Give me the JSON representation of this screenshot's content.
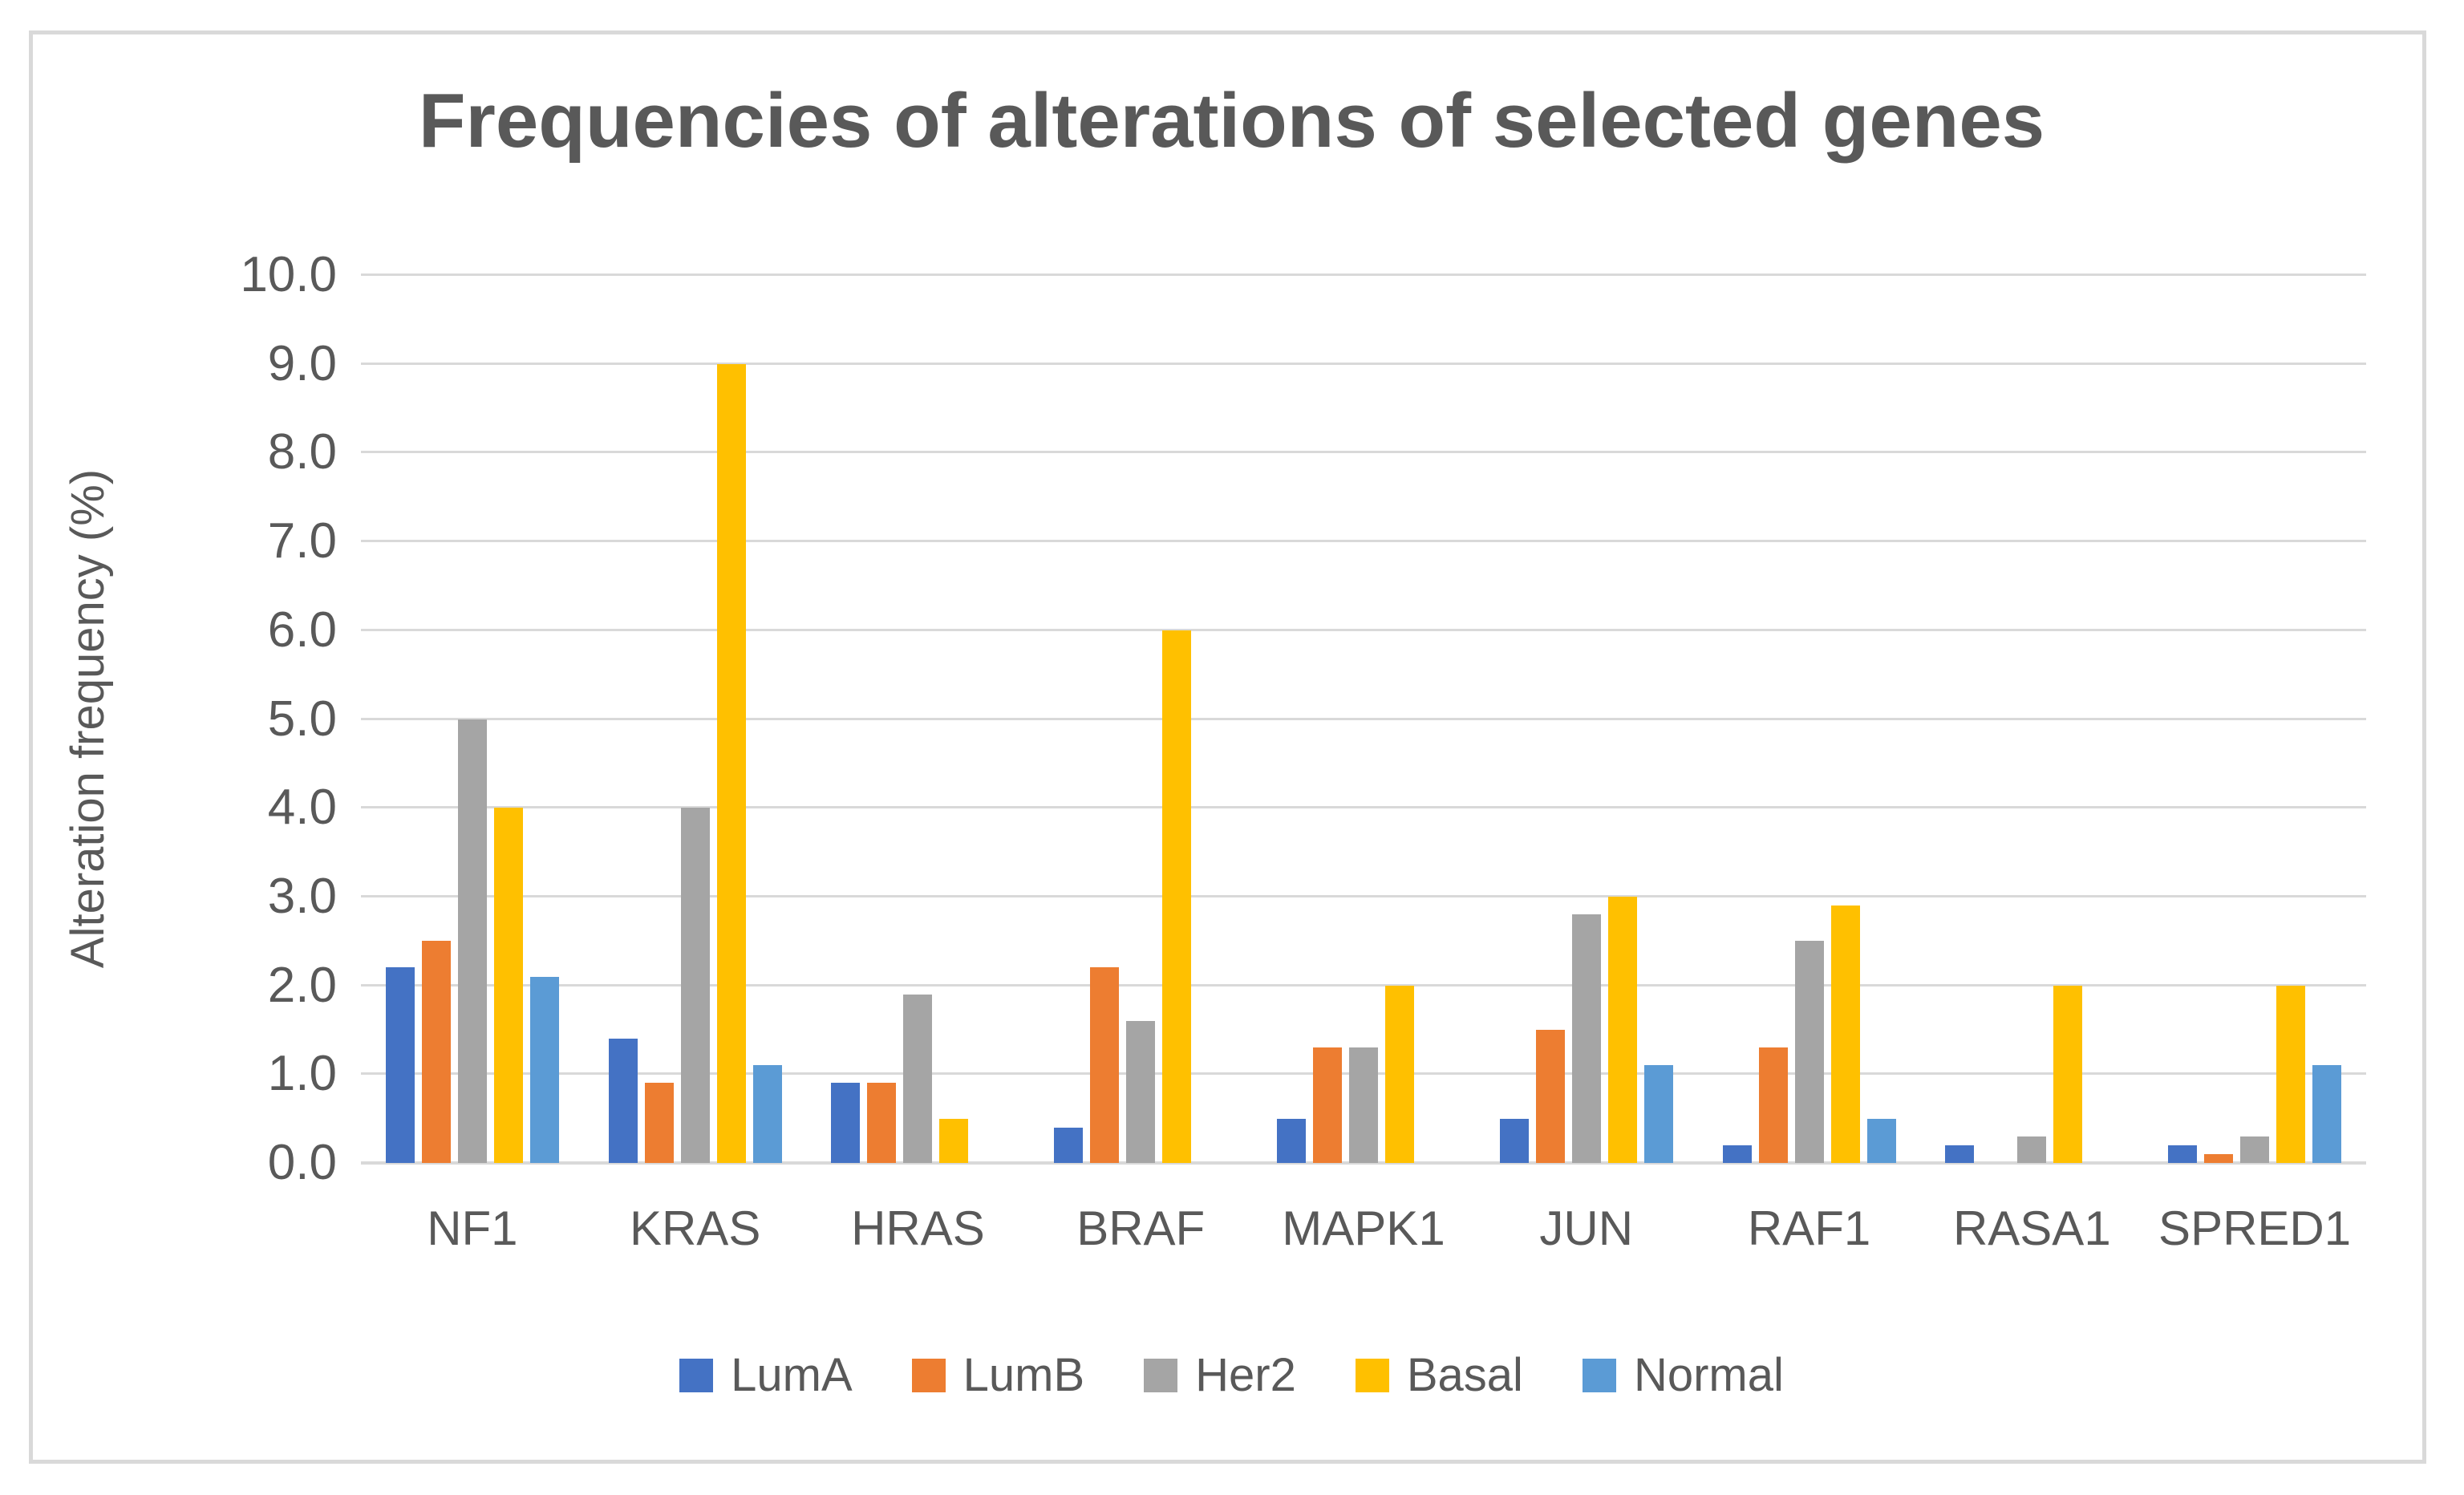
{
  "chart_data": {
    "type": "bar",
    "title": "Frequencies of alterations of selected genes",
    "xlabel": "",
    "ylabel": "Alteration frequency (%)",
    "categories": [
      "NF1",
      "KRAS",
      "HRAS",
      "BRAF",
      "MAPK1",
      "JUN",
      "RAF1",
      "RASA1",
      "SPRED1"
    ],
    "series": [
      {
        "name": "LumA",
        "color": "#4472C4",
        "values": [
          2.2,
          1.4,
          0.9,
          0.4,
          0.5,
          0.5,
          0.2,
          0.2,
          0.2
        ]
      },
      {
        "name": "LumB",
        "color": "#ED7D31",
        "values": [
          2.5,
          0.9,
          0.9,
          2.2,
          1.3,
          1.5,
          1.3,
          0.0,
          0.1
        ]
      },
      {
        "name": "Her2",
        "color": "#A5A5A5",
        "values": [
          5.0,
          4.0,
          1.9,
          1.6,
          1.3,
          2.8,
          2.5,
          0.3,
          0.3
        ]
      },
      {
        "name": "Basal",
        "color": "#FFC000",
        "values": [
          4.0,
          9.0,
          0.5,
          6.0,
          2.0,
          3.0,
          2.9,
          2.0,
          2.0
        ]
      },
      {
        "name": "Normal",
        "color": "#5B9BD5",
        "values": [
          2.1,
          1.1,
          0.0,
          0.0,
          0.0,
          1.1,
          0.5,
          0.0,
          1.1
        ]
      }
    ],
    "ylim": [
      0,
      10
    ],
    "ytick_step": 1.0,
    "ytick_labels": [
      "10.0",
      "9.0",
      "8.0",
      "7.0",
      "6.0",
      "5.0",
      "4.0",
      "3.0",
      "2.0",
      "1.0",
      "0.0"
    ],
    "grid": "horizontal",
    "legend_position": "bottom"
  },
  "colors": {
    "text": "#595959",
    "gridline": "#D9D9D9",
    "frame_border": "#D9D9D9",
    "background": "#FFFFFF"
  }
}
